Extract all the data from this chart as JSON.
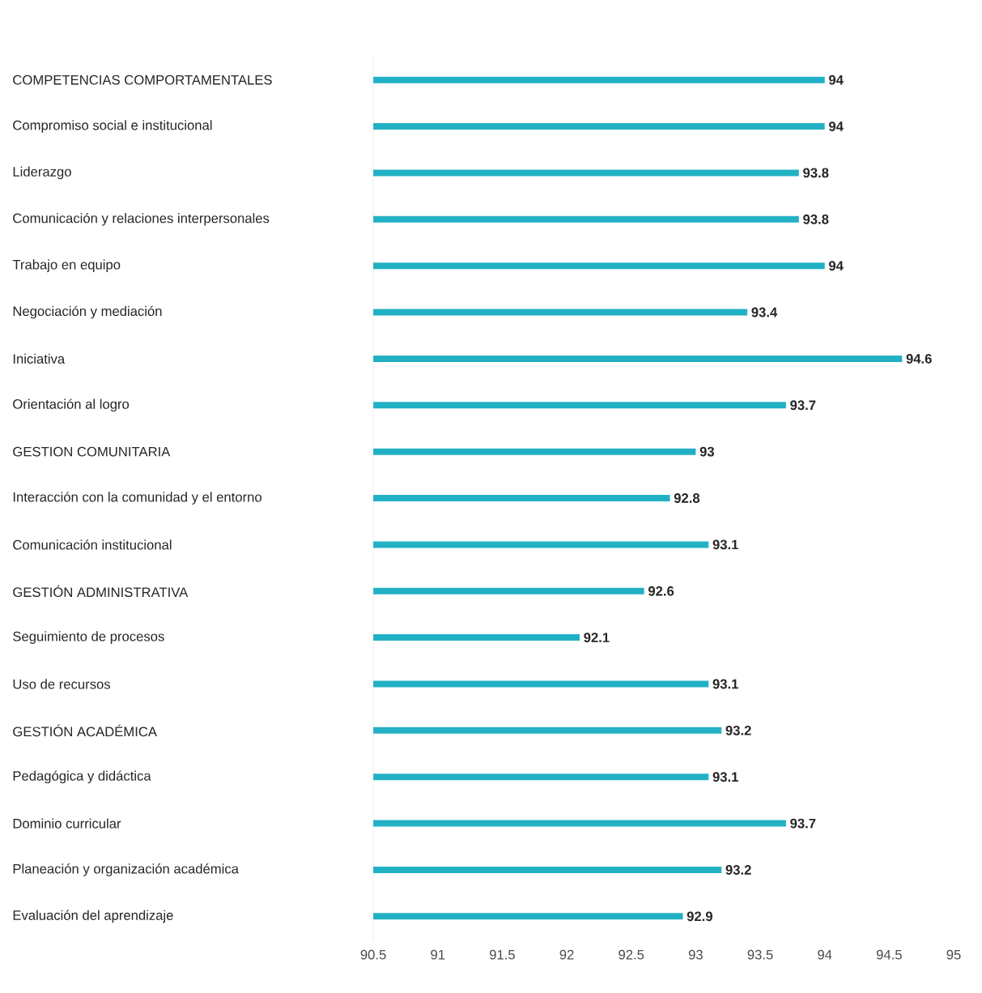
{
  "chart_data": {
    "type": "bar",
    "orientation": "horizontal",
    "color": "#22b1c4",
    "categories": [
      "COMPETENCIAS COMPORTAMENTALES",
      "Compromiso social e institucional",
      "Liderazgo",
      "Comunicación y relaciones interpersonales",
      "Trabajo en equipo",
      "Negociación y mediación",
      "Iniciativa",
      "Orientación al logro",
      "GESTION COMUNITARIA",
      "Interacción con la comunidad y el entorno",
      "Comunicación institucional",
      "GESTIÓN ADMINISTRATIVA",
      "Seguimiento de procesos",
      "Uso de recursos",
      "GESTIÓN ACADÉMICA",
      "Pedagógica y didáctica",
      "Dominio curricular",
      "Planeación y organización académica",
      "Evaluación del aprendizaje"
    ],
    "values": [
      94,
      94,
      93.8,
      93.8,
      94,
      93.4,
      94.6,
      93.7,
      93,
      92.8,
      93.1,
      92.6,
      92.1,
      93.1,
      93.2,
      93.1,
      93.7,
      93.2,
      92.9
    ],
    "data_labels": true,
    "xlim": [
      90.5,
      95
    ],
    "xticks": [
      90.5,
      91,
      91.5,
      92,
      92.5,
      93,
      93.5,
      94,
      94.5,
      95
    ]
  }
}
